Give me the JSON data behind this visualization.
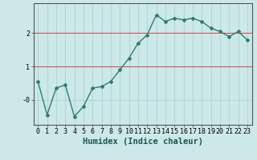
{
  "xlabel": "Humidex (Indice chaleur)",
  "x": [
    0,
    1,
    2,
    3,
    4,
    5,
    6,
    7,
    8,
    9,
    10,
    11,
    12,
    13,
    14,
    15,
    16,
    17,
    18,
    19,
    20,
    21,
    22,
    23
  ],
  "y": [
    0.55,
    -0.45,
    0.35,
    0.45,
    -0.5,
    -0.2,
    0.35,
    0.4,
    0.55,
    0.9,
    1.25,
    1.7,
    1.95,
    2.55,
    2.35,
    2.45,
    2.4,
    2.45,
    2.35,
    2.15,
    2.05,
    1.9,
    2.05,
    1.8
  ],
  "line_color": "#2e7d6e",
  "marker": "D",
  "marker_size": 2,
  "bg_color": "#cce8e8",
  "grid_color": "#b0d8d8",
  "axis_color": "#555555",
  "ylim": [
    -0.75,
    2.9
  ],
  "xlim": [
    -0.5,
    23.5
  ],
  "ytick_vals": [
    0,
    1,
    2
  ],
  "ytick_labels": [
    "-0",
    "1",
    "2"
  ],
  "xtick_labels": [
    "0",
    "1",
    "2",
    "3",
    "4",
    "5",
    "6",
    "7",
    "8",
    "9",
    "10",
    "11",
    "12",
    "13",
    "14",
    "15",
    "16",
    "17",
    "18",
    "19",
    "20",
    "21",
    "22",
    "23"
  ],
  "hline_color": "#dd4444",
  "hline_y": [
    1,
    2
  ],
  "linewidth": 1.0,
  "tick_fontsize": 6,
  "label_fontsize": 7.5
}
